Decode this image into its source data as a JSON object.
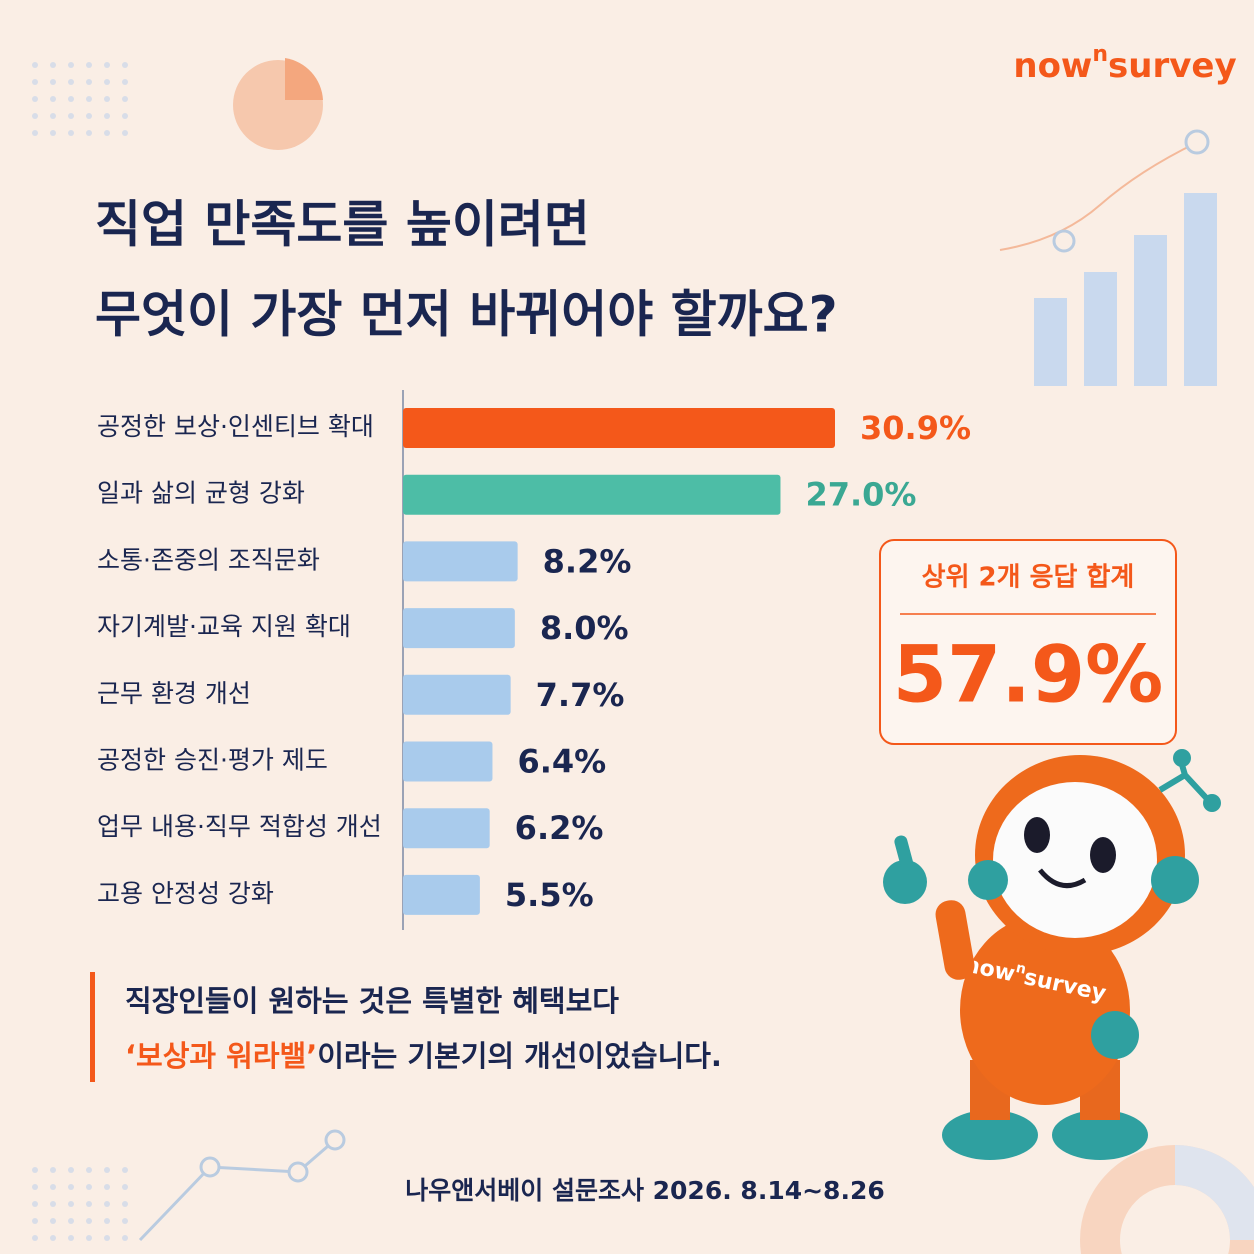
{
  "logo": [
    "now",
    "n",
    "survey"
  ],
  "chart_data": {
    "type": "hbar",
    "title": [
      "직업 만족도를 높이려면",
      "무엇이 가장 먼저 바뀌어야 할까요?"
    ],
    "categories": [
      "공정한 보상·인센티브 확대",
      "일과 삶의 균형 강화",
      "소통·존중의 조직문화",
      "자기계발·교육 지원 확대",
      "근무 환경 개선",
      "공정한 승진·평가 제도",
      "업무 내용·직무 적합성 개선",
      "고용 안정성 강화"
    ],
    "values": [
      30.9,
      27.0,
      8.2,
      8.0,
      7.7,
      6.4,
      6.2,
      5.5
    ],
    "value_labels": [
      "30.9%",
      "27.0%",
      "8.2%",
      "8.0%",
      "7.7%",
      "6.4%",
      "6.2%",
      "5.5%"
    ],
    "colors": [
      "#f4581a",
      "#4dbda6",
      "#a9cbec",
      "#a9cbec",
      "#a9cbec",
      "#a9cbec",
      "#a9cbec",
      "#a9cbec"
    ],
    "label_colors": [
      "#f4581a",
      "#3aa893",
      "#1a2650",
      "#1a2650",
      "#1a2650",
      "#1a2650",
      "#1a2650",
      "#1a2650"
    ]
  },
  "callout": {
    "label": "상위 2개 응답 합계",
    "value": "57.9%"
  },
  "note": {
    "line1": "직장인들이 원하는 것은 특별한 혜택보다",
    "highlight": "‘보상과 워라밸’",
    "line2_rest": "이라는 기본기의 개선이었습니다."
  },
  "source": "나우앤서베이 설문조사 2026. 8.14~8.26"
}
